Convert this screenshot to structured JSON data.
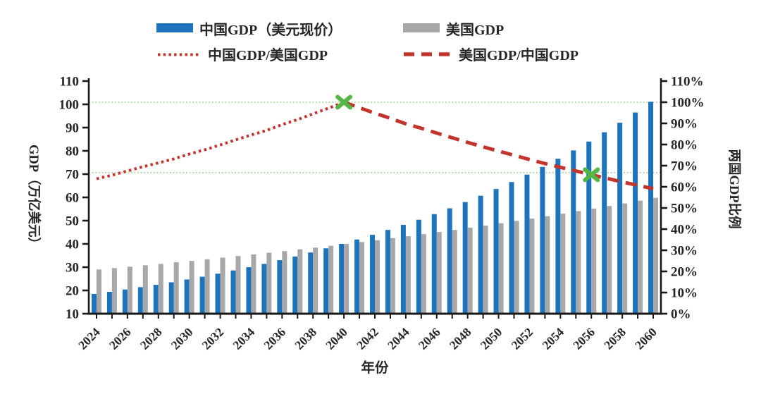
{
  "figure": {
    "x_axis_title": "年份",
    "y_left_title": "GDP（万亿美元）",
    "y_right_title": "两国GDP比例"
  },
  "legend": {
    "position": "top-center",
    "items": [
      {
        "id": "china-gdp-bars",
        "label": "中国GDP（美元现价）",
        "swatch": "bar",
        "color_key": "china_bar"
      },
      {
        "id": "us-gdp-bars",
        "label": "美国GDP",
        "swatch": "bar",
        "color_key": "us_bar"
      },
      {
        "id": "china-over-us-line",
        "label": "中国GDP/美国GDP",
        "swatch": "dotted-line",
        "color_key": "ratio_line"
      },
      {
        "id": "us-over-china-line",
        "label": "美国GDP/中国GDP",
        "swatch": "dashed-line",
        "color_key": "ratio_line"
      }
    ]
  },
  "colors": {
    "china_bar": "#1e74bc",
    "us_bar": "#a8a8a8",
    "ratio_line": "#c1352d",
    "marker_green": "#55b648",
    "reference_line": "#a9d6a1",
    "axis": "#1a1a1a",
    "text": "#262626"
  },
  "chart_data": {
    "type": "bar",
    "subtype": "grouped-bars-with-ratio-lines",
    "x": [
      2024,
      2025,
      2026,
      2027,
      2028,
      2029,
      2030,
      2031,
      2032,
      2033,
      2034,
      2035,
      2036,
      2037,
      2038,
      2039,
      2040,
      2041,
      2042,
      2043,
      2044,
      2045,
      2046,
      2047,
      2048,
      2049,
      2050,
      2051,
      2052,
      2053,
      2054,
      2055,
      2056,
      2057,
      2058,
      2059,
      2060
    ],
    "x_tick_labels": [
      2024,
      2026,
      2028,
      2030,
      2032,
      2034,
      2036,
      2038,
      2040,
      2042,
      2044,
      2046,
      2048,
      2050,
      2052,
      2054,
      2056,
      2058,
      2060
    ],
    "xlabel": "年份",
    "y_left": {
      "label": "GDP（万亿美元）",
      "min": 10,
      "max": 110,
      "step": 10
    },
    "y_right": {
      "label": "两国GDP比例",
      "min": 0,
      "max": 110,
      "step": 10,
      "unit": "%"
    },
    "grid": "horizontal reference lines only",
    "legend_position": "top-center",
    "bar_series": [
      {
        "name": "中国GDP（美元现价）",
        "axis": "left",
        "color_key": "china_bar",
        "values": [
          18.5,
          19.4,
          20.4,
          21.4,
          22.4,
          23.5,
          24.7,
          25.9,
          27.2,
          28.6,
          30.0,
          31.4,
          33.0,
          34.6,
          36.3,
          38.1,
          40.0,
          41.9,
          43.9,
          46.0,
          48.2,
          50.4,
          52.8,
          55.3,
          58.0,
          60.7,
          63.6,
          66.6,
          69.8,
          73.1,
          76.6,
          80.2,
          84.0,
          88.0,
          92.1,
          96.5,
          101.1
        ]
      },
      {
        "name": "美国GDP",
        "axis": "left",
        "color_key": "us_bar",
        "values": [
          29.0,
          29.6,
          30.2,
          30.8,
          31.4,
          32.1,
          32.7,
          33.4,
          34.1,
          34.8,
          35.5,
          36.2,
          36.9,
          37.7,
          38.4,
          39.2,
          40.0,
          40.8,
          41.6,
          42.5,
          43.3,
          44.2,
          45.1,
          46.0,
          47.0,
          47.9,
          48.9,
          49.9,
          50.9,
          51.9,
          53.0,
          54.1,
          55.2,
          56.3,
          57.4,
          58.6,
          59.8
        ]
      }
    ],
    "line_series": [
      {
        "name": "中国GDP/美国GDP",
        "axis": "right",
        "style": "dotted",
        "color_key": "ratio_line",
        "years": [
          2024,
          2025,
          2026,
          2027,
          2028,
          2029,
          2030,
          2031,
          2032,
          2033,
          2034,
          2035,
          2036,
          2037,
          2038,
          2039,
          2040
        ],
        "values_pct": [
          63.8,
          65.5,
          67.5,
          69.5,
          71.3,
          73.2,
          75.5,
          77.5,
          79.8,
          82.2,
          84.5,
          86.7,
          89.4,
          91.8,
          94.5,
          97.2,
          100.0
        ]
      },
      {
        "name": "美国GDP/中国GDP",
        "axis": "right",
        "style": "dashed",
        "color_key": "ratio_line",
        "years": [
          2040,
          2041,
          2042,
          2043,
          2044,
          2045,
          2046,
          2047,
          2048,
          2049,
          2050,
          2051,
          2052,
          2053,
          2054,
          2055,
          2056,
          2057,
          2058,
          2059,
          2060
        ],
        "values_pct": [
          100.0,
          97.4,
          94.8,
          92.4,
          89.8,
          87.7,
          85.4,
          83.2,
          81.0,
          78.9,
          76.9,
          74.9,
          72.9,
          71.0,
          69.2,
          67.5,
          65.7,
          64.0,
          62.3,
          60.7,
          59.1
        ]
      }
    ],
    "markers": [
      {
        "shape": "x-cross",
        "color_key": "marker_green",
        "year": 2040,
        "value_pct": 100.0
      },
      {
        "shape": "x-cross",
        "color_key": "marker_green",
        "year": 2056,
        "value_pct": 65.7
      }
    ],
    "reference_lines_pct": [
      100.0,
      66.7
    ]
  }
}
